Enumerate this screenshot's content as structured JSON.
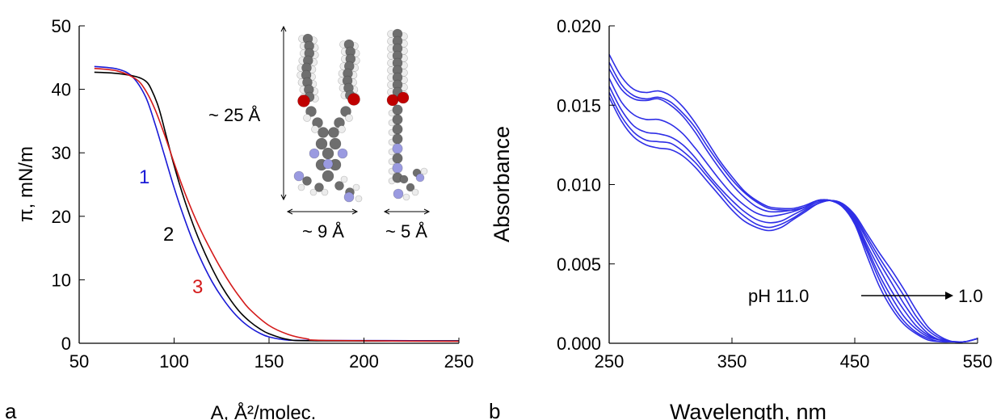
{
  "colors": {
    "curve1": "#1a1ad6",
    "curve2": "#000000",
    "curve3": "#d41a1a",
    "spectra": "#2e2ee6",
    "oxygen": "#c00000",
    "nitrogen": "#9a9ae0",
    "carbon": "#6e6e6e",
    "hydrogen": "#ececec"
  },
  "panel_a": {
    "label": "a",
    "inset": {
      "length_label": "~ 25 Å",
      "width_front_label": "~ 9 Å",
      "width_side_label": "~ 5 Å"
    }
  },
  "panel_b": {
    "label": "b",
    "annotation_start": "pH 11.0",
    "annotation_end": "1.0"
  },
  "chart_data": [
    {
      "type": "line",
      "panel": "a",
      "xlabel": "A, Å²/molec.",
      "ylabel": "π, mN/m",
      "xlim": [
        50,
        250
      ],
      "ylim": [
        0,
        50
      ],
      "xticks": [
        50,
        100,
        150,
        200,
        250
      ],
      "yticks": [
        0,
        10,
        20,
        30,
        40,
        50
      ],
      "grid": false,
      "series": [
        {
          "name": "1",
          "color": "#1a1ad6",
          "points": [
            [
              58,
              43.6
            ],
            [
              70,
              43.2
            ],
            [
              78,
              42.0
            ],
            [
              85,
              38.8
            ],
            [
              90,
              34.5
            ],
            [
              95,
              29.5
            ],
            [
              100,
              24.5
            ],
            [
              105,
              20.0
            ],
            [
              110,
              16.0
            ],
            [
              115,
              12.6
            ],
            [
              120,
              9.7
            ],
            [
              125,
              7.3
            ],
            [
              130,
              5.3
            ],
            [
              135,
              3.7
            ],
            [
              140,
              2.5
            ],
            [
              145,
              1.6
            ],
            [
              150,
              1.0
            ],
            [
              160,
              0.5
            ],
            [
              175,
              0.45
            ],
            [
              250,
              0.4
            ]
          ]
        },
        {
          "name": "2",
          "color": "#000000",
          "points": [
            [
              58,
              42.7
            ],
            [
              70,
              42.5
            ],
            [
              80,
              42.0
            ],
            [
              85,
              41.3
            ],
            [
              88,
              40.0
            ],
            [
              92,
              37.0
            ],
            [
              96,
              32.5
            ],
            [
              100,
              28.0
            ],
            [
              105,
              23.0
            ],
            [
              110,
              18.7
            ],
            [
              115,
              15.0
            ],
            [
              120,
              11.8
            ],
            [
              125,
              9.0
            ],
            [
              130,
              6.7
            ],
            [
              135,
              4.8
            ],
            [
              140,
              3.4
            ],
            [
              145,
              2.3
            ],
            [
              150,
              1.5
            ],
            [
              160,
              0.6
            ],
            [
              175,
              0.4
            ],
            [
              250,
              0.35
            ]
          ]
        },
        {
          "name": "3",
          "color": "#d41a1a",
          "points": [
            [
              58,
              43.3
            ],
            [
              70,
              42.9
            ],
            [
              80,
              41.6
            ],
            [
              85,
              39.8
            ],
            [
              90,
              36.8
            ],
            [
              95,
              32.8
            ],
            [
              100,
              28.4
            ],
            [
              105,
              24.2
            ],
            [
              110,
              20.5
            ],
            [
              115,
              17.2
            ],
            [
              120,
              14.3
            ],
            [
              125,
              11.6
            ],
            [
              130,
              9.2
            ],
            [
              135,
              7.1
            ],
            [
              140,
              5.3
            ],
            [
              150,
              2.8
            ],
            [
              160,
              1.4
            ],
            [
              170,
              0.7
            ],
            [
              180,
              0.45
            ],
            [
              250,
              0.3
            ]
          ]
        }
      ]
    },
    {
      "type": "line",
      "panel": "b",
      "xlabel": "Wavelength, nm",
      "ylabel": "Absorbance",
      "xlim": [
        250,
        550
      ],
      "ylim": [
        0.0,
        0.02
      ],
      "xticks": [
        250,
        350,
        450,
        550
      ],
      "ytick_labels": [
        "0.000",
        "0.005",
        "0.010",
        "0.015",
        "0.020"
      ],
      "grid": false,
      "x": [
        250,
        260,
        270,
        280,
        290,
        300,
        310,
        320,
        330,
        340,
        350,
        360,
        370,
        380,
        390,
        400,
        410,
        420,
        430,
        440,
        450,
        460,
        470,
        480,
        490,
        500,
        510,
        520,
        530,
        540,
        550
      ],
      "series": [
        {
          "values": [
            0.0182,
            0.0168,
            0.016,
            0.0158,
            0.0159,
            0.0156,
            0.0149,
            0.0139,
            0.0127,
            0.0115,
            0.0105,
            0.0096,
            0.009,
            0.0086,
            0.0085,
            0.0085,
            0.0087,
            0.009,
            0.009,
            0.0086,
            0.0075,
            0.0055,
            0.0036,
            0.0022,
            0.0012,
            0.0006,
            0.0002,
            0.0001,
            0.0001,
            0.0001,
            0.0003
          ]
        },
        {
          "values": [
            0.0177,
            0.0163,
            0.0156,
            0.0154,
            0.0155,
            0.0152,
            0.0145,
            0.0136,
            0.0124,
            0.0113,
            0.0103,
            0.0095,
            0.0089,
            0.0085,
            0.0084,
            0.0084,
            0.0086,
            0.009,
            0.009,
            0.0086,
            0.0076,
            0.0058,
            0.004,
            0.0025,
            0.0014,
            0.0007,
            0.0003,
            0.0001,
            0.0001,
            0.0001,
            0.0003
          ]
        },
        {
          "values": [
            0.0173,
            0.016,
            0.0154,
            0.0153,
            0.0154,
            0.015,
            0.0143,
            0.0133,
            0.0121,
            0.011,
            0.01,
            0.0092,
            0.0086,
            0.0083,
            0.0083,
            0.0084,
            0.0086,
            0.009,
            0.009,
            0.0087,
            0.0077,
            0.006,
            0.0043,
            0.0029,
            0.0017,
            0.0009,
            0.0004,
            0.0002,
            0.0001,
            0.0001,
            0.0003
          ]
        },
        {
          "values": [
            0.0167,
            0.0152,
            0.0144,
            0.0141,
            0.0141,
            0.0138,
            0.0132,
            0.0123,
            0.0113,
            0.0103,
            0.0094,
            0.0087,
            0.0082,
            0.008,
            0.0081,
            0.0083,
            0.0086,
            0.009,
            0.009,
            0.0087,
            0.0078,
            0.0062,
            0.0047,
            0.0033,
            0.0021,
            0.0011,
            0.0005,
            0.0002,
            0.0001,
            0.0001,
            0.0003
          ]
        },
        {
          "values": [
            0.0162,
            0.0147,
            0.0137,
            0.0133,
            0.0132,
            0.013,
            0.0125,
            0.0117,
            0.0107,
            0.0098,
            0.009,
            0.0083,
            0.0078,
            0.0076,
            0.0077,
            0.0081,
            0.0085,
            0.0089,
            0.009,
            0.0087,
            0.0079,
            0.0065,
            0.0051,
            0.0038,
            0.0025,
            0.0014,
            0.0006,
            0.0002,
            0.0001,
            0.0001,
            0.0003
          ]
        },
        {
          "values": [
            0.0158,
            0.0143,
            0.0133,
            0.0128,
            0.0127,
            0.0126,
            0.0121,
            0.0114,
            0.0105,
            0.0096,
            0.0087,
            0.008,
            0.0075,
            0.0073,
            0.0075,
            0.0079,
            0.0084,
            0.0088,
            0.009,
            0.0088,
            0.008,
            0.0067,
            0.0054,
            0.0042,
            0.003,
            0.0017,
            0.0008,
            0.0003,
            0.0001,
            0.0001,
            0.0003
          ]
        },
        {
          "values": [
            0.0155,
            0.014,
            0.013,
            0.0125,
            0.0123,
            0.0122,
            0.0118,
            0.0111,
            0.0102,
            0.0093,
            0.0084,
            0.0077,
            0.0073,
            0.0071,
            0.0073,
            0.0078,
            0.0083,
            0.0088,
            0.009,
            0.0088,
            0.0081,
            0.0069,
            0.0057,
            0.0046,
            0.0034,
            0.0021,
            0.001,
            0.0004,
            0.0001,
            0.0001,
            0.0003
          ]
        }
      ]
    }
  ]
}
